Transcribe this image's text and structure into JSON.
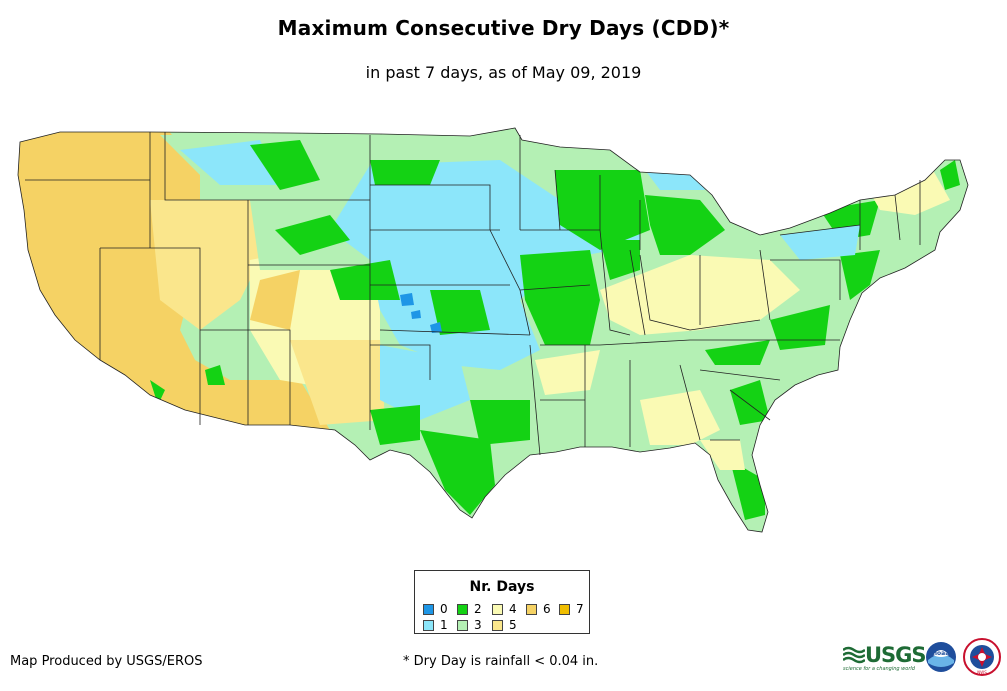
{
  "title": "Maximum Consecutive Dry Days (CDD)*",
  "subtitle": "in past 7 days, as of May 09, 2019",
  "legend": {
    "title": "Nr. Days",
    "items": [
      {
        "label": "0",
        "color": "#1e96e6"
      },
      {
        "label": "1",
        "color": "#8ce6fa"
      },
      {
        "label": "2",
        "color": "#14d214"
      },
      {
        "label": "3",
        "color": "#b4f0b4"
      },
      {
        "label": "4",
        "color": "#fafab4"
      },
      {
        "label": "5",
        "color": "#fae68c"
      },
      {
        "label": "6",
        "color": "#f5d264"
      },
      {
        "label": "7",
        "color": "#f0be00"
      }
    ]
  },
  "footer": {
    "produced_by": "Map Produced by USGS/EROS",
    "note": "* Dry Day is rainfall < 0.04 in."
  },
  "logos": {
    "usgs": "USGS",
    "usgs_tagline": "science for a changing world",
    "noaa": "noaa",
    "nws": "NWS"
  }
}
